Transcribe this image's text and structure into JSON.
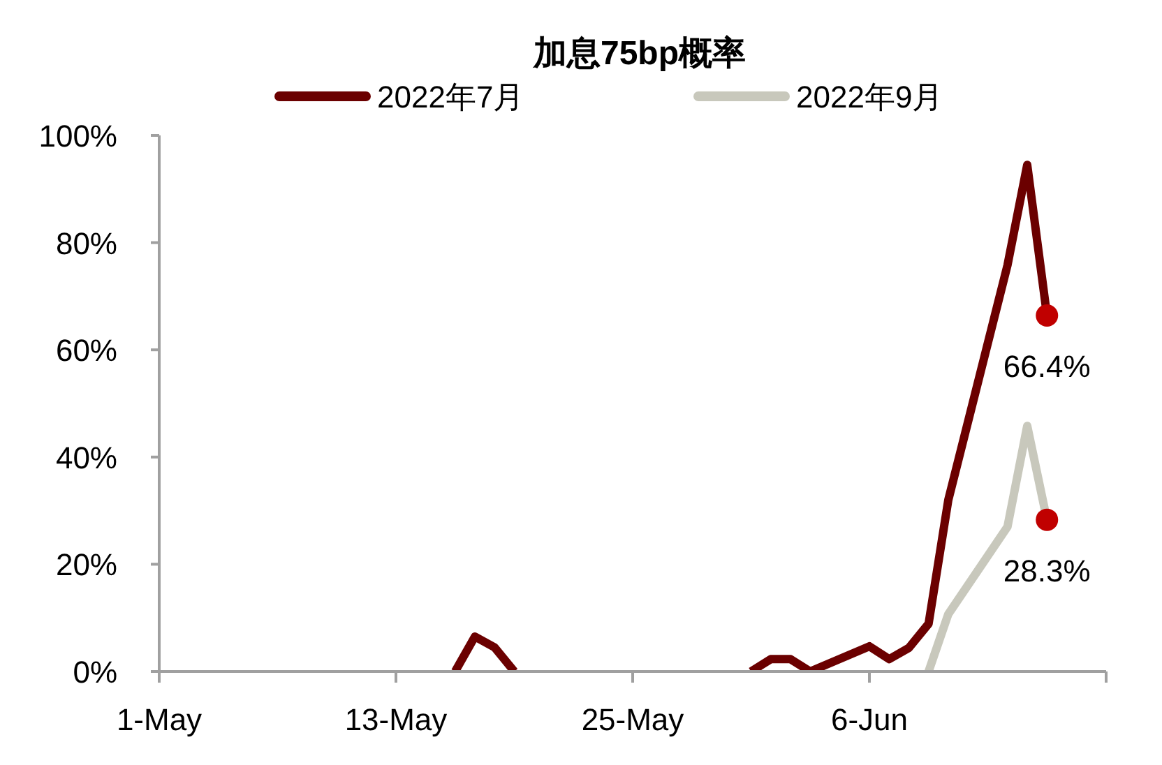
{
  "chart_data": {
    "type": "line",
    "title": "加息75bp概率",
    "legend": "top",
    "grid": false,
    "line_style": "solid",
    "xlim": [
      "2022-05-01",
      "2022-06-18"
    ],
    "xticks": [
      {
        "value": "2022-05-01",
        "label": "1-May"
      },
      {
        "value": "2022-05-13",
        "label": "13-May"
      },
      {
        "value": "2022-05-25",
        "label": "25-May"
      },
      {
        "value": "2022-06-06",
        "label": "6-Jun"
      },
      {
        "value": "2022-06-18",
        "label": null
      }
    ],
    "ylim": [
      0,
      100
    ],
    "yticks": [
      {
        "value": 0,
        "label": "0%"
      },
      {
        "value": 20,
        "label": "20%"
      },
      {
        "value": 40,
        "label": "40%"
      },
      {
        "value": 60,
        "label": "60%"
      },
      {
        "value": 80,
        "label": "80%"
      },
      {
        "value": 100,
        "label": "100%"
      }
    ],
    "series": [
      {
        "name": "2022年7月",
        "color": "#6b0000",
        "x": [
          "2022-05-16",
          "2022-05-17",
          "2022-05-18",
          "2022-05-19",
          "2022-05-20",
          "2022-05-31",
          "2022-06-01",
          "2022-06-02",
          "2022-06-03",
          "2022-06-06",
          "2022-06-07",
          "2022-06-08",
          "2022-06-09",
          "2022-06-10",
          "2022-06-13",
          "2022-06-14",
          "2022-06-15"
        ],
        "values": [
          0,
          6.5,
          4.5,
          0,
          null,
          0,
          2.3,
          2.3,
          0,
          4.7,
          2.3,
          4.4,
          8.9,
          32,
          75.8,
          94.5,
          66.4
        ]
      },
      {
        "name": "2022年9月",
        "color": "#c8c8bc",
        "x": [
          "2022-06-09",
          "2022-06-10",
          "2022-06-13",
          "2022-06-14",
          "2022-06-15"
        ],
        "values": [
          0,
          10.7,
          27,
          45.8,
          28.3
        ]
      },
      {
        "type": "scatter",
        "color": "#c00000",
        "marker": "circle",
        "x": [
          "2022-06-15",
          "2022-06-15"
        ],
        "values": [
          66.4,
          28.3
        ]
      }
    ],
    "annotations": [
      {
        "text": "66.4%",
        "x": "2022-06-15",
        "y": 66.4
      },
      {
        "text": "28.3%",
        "x": "2022-06-15",
        "y": 28.3
      }
    ]
  }
}
